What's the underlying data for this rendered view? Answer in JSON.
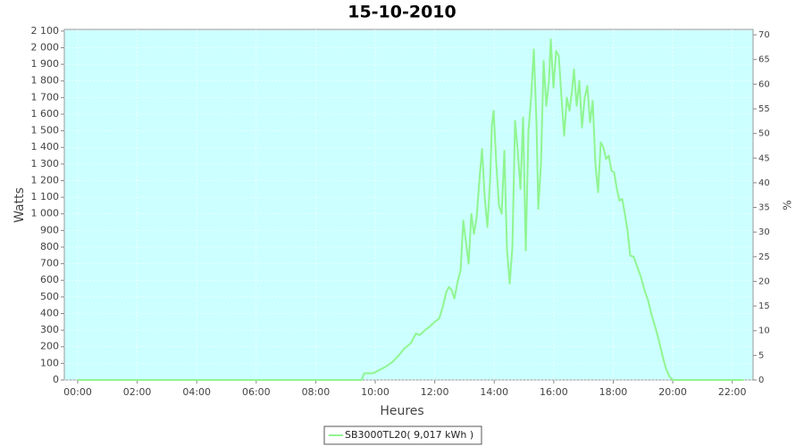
{
  "chart_data": {
    "type": "line",
    "title": "15-10-2010",
    "xlabel": "Heures",
    "ylabel": "Watts",
    "y2label": "%",
    "x": [
      0,
      9.54,
      9.63,
      9.93,
      10.14,
      10.35,
      10.59,
      10.8,
      10.98,
      11.19,
      11.37,
      11.49,
      11.67,
      11.82,
      12.0,
      12.15,
      12.27,
      12.39,
      12.48,
      12.57,
      12.66,
      12.78,
      12.87,
      12.96,
      13.05,
      13.14,
      13.23,
      13.32,
      13.41,
      13.5,
      13.59,
      13.68,
      13.77,
      13.86,
      13.92,
      13.98,
      14.07,
      14.16,
      14.25,
      14.34,
      14.43,
      14.52,
      14.61,
      14.7,
      14.79,
      14.88,
      14.97,
      15.06,
      15.15,
      15.24,
      15.33,
      15.42,
      15.48,
      15.57,
      15.66,
      15.75,
      15.84,
      15.9,
      15.99,
      16.08,
      16.17,
      16.26,
      16.35,
      16.44,
      16.53,
      16.62,
      16.68,
      16.77,
      16.86,
      16.95,
      17.04,
      17.13,
      17.22,
      17.31,
      17.4,
      17.49,
      17.58,
      17.67,
      17.76,
      17.85,
      17.94,
      18.03,
      18.12,
      18.21,
      18.3,
      18.39,
      18.48,
      18.57,
      18.69,
      18.81,
      18.93,
      19.05,
      19.17,
      19.29,
      19.41,
      19.53,
      19.65,
      19.77,
      19.89,
      20.01,
      22.38
    ],
    "series": [
      {
        "name": "SB3000TL20( 9,017 kWh )",
        "color": "#90f590",
        "values": [
          0,
          0,
          40,
          40,
          60,
          80,
          110,
          150,
          190,
          220,
          280,
          270,
          300,
          320,
          350,
          370,
          440,
          530,
          560,
          540,
          490,
          600,
          660,
          960,
          830,
          700,
          1000,
          880,
          980,
          1200,
          1390,
          1100,
          920,
          1200,
          1530,
          1620,
          1300,
          1050,
          1000,
          1380,
          780,
          580,
          800,
          1560,
          1380,
          1150,
          1580,
          780,
          1500,
          1700,
          1990,
          1550,
          1030,
          1300,
          1920,
          1650,
          1800,
          2050,
          1760,
          1980,
          1950,
          1700,
          1470,
          1700,
          1620,
          1750,
          1870,
          1650,
          1800,
          1520,
          1700,
          1770,
          1550,
          1680,
          1300,
          1130,
          1430,
          1400,
          1330,
          1350,
          1260,
          1250,
          1150,
          1080,
          1090,
          1000,
          900,
          750,
          740,
          680,
          620,
          540,
          480,
          390,
          320,
          240,
          150,
          70,
          20,
          0,
          0
        ]
      }
    ],
    "xlim": [
      -0.45,
      22.7
    ],
    "xticks": [
      {
        "value": 0,
        "label": "00:00"
      },
      {
        "value": 2,
        "label": "02:00"
      },
      {
        "value": 4,
        "label": "04:00"
      },
      {
        "value": 6,
        "label": "06:00"
      },
      {
        "value": 8,
        "label": "08:00"
      },
      {
        "value": 10,
        "label": "10:00"
      },
      {
        "value": 12,
        "label": "12:00"
      },
      {
        "value": 14,
        "label": "14:00"
      },
      {
        "value": 16,
        "label": "16:00"
      },
      {
        "value": 18,
        "label": "18:00"
      },
      {
        "value": 20,
        "label": "20:00"
      },
      {
        "value": 22,
        "label": "22:00"
      }
    ],
    "ylim": [
      0,
      2110
    ],
    "yticks": [
      0,
      100,
      200,
      300,
      400,
      500,
      600,
      700,
      800,
      900,
      {
        "value": 1000,
        "label": "1 000"
      },
      {
        "value": 1100,
        "label": "1 100"
      },
      {
        "value": 1200,
        "label": "1 200"
      },
      {
        "value": 1300,
        "label": "1 300"
      },
      {
        "value": 1400,
        "label": "1 400"
      },
      {
        "value": 1500,
        "label": "1 500"
      },
      {
        "value": 1600,
        "label": "1 600"
      },
      {
        "value": 1700,
        "label": "1 700"
      },
      {
        "value": 1800,
        "label": "1 800"
      },
      {
        "value": 1900,
        "label": "1 900"
      },
      {
        "value": 2000,
        "label": "2 000"
      },
      {
        "value": 2100,
        "label": "2 100"
      }
    ],
    "y2lim": [
      0,
      71.1
    ],
    "y2ticks": [
      0,
      5,
      10,
      15,
      20,
      25,
      30,
      35,
      40,
      45,
      50,
      55,
      60,
      65,
      70
    ],
    "grid": true
  }
}
